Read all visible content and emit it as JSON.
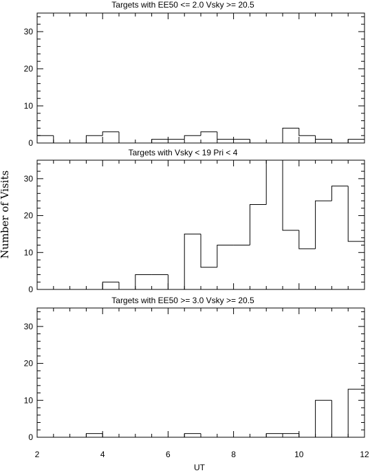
{
  "chart_data": {
    "type": "histogram",
    "xlabel": "UT",
    "ylabel": "Number of Visits",
    "xlim": [
      2,
      12
    ],
    "ylim": [
      0,
      35
    ],
    "xticks": [
      2,
      4,
      6,
      8,
      10,
      12
    ],
    "yticks": [
      0,
      10,
      20,
      30
    ],
    "bin_width": 0.5,
    "bin_starts": [
      2.0,
      2.5,
      3.0,
      3.5,
      4.0,
      4.5,
      5.0,
      5.5,
      6.0,
      6.5,
      7.0,
      7.5,
      8.0,
      8.5,
      9.0,
      9.5,
      10.0,
      10.5,
      11.0,
      11.5
    ],
    "panels": [
      {
        "title": "Targets with EE50 <= 2.0 Vsky >= 20.5",
        "counts": [
          2,
          0,
          0,
          2,
          3,
          0,
          0,
          1,
          1,
          2,
          3,
          1,
          1,
          0,
          0,
          4,
          2,
          1,
          0,
          1
        ]
      },
      {
        "title": "Targets with Vsky < 19 Pri < 4",
        "counts": [
          0,
          0,
          0,
          0,
          2,
          0,
          4,
          4,
          0,
          15,
          6,
          12,
          12,
          23,
          36,
          16,
          11,
          24,
          28,
          13
        ]
      },
      {
        "title": "Targets with EE50 >= 3.0 Vsky >= 20.5",
        "counts": [
          0,
          0,
          0,
          1,
          0,
          0,
          0,
          0,
          0,
          1,
          0,
          0,
          0,
          0,
          1,
          1,
          0,
          10,
          0,
          13
        ]
      }
    ],
    "grid": false,
    "legend": "none"
  }
}
